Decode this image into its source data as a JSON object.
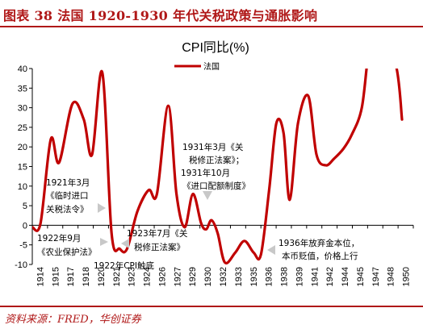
{
  "header": {
    "figure_title": "图表 38   法国 1920-1930 年代关税政策与通胀影响"
  },
  "source": "资料来源：FRED，华创证券",
  "chart_data": {
    "type": "line",
    "title": "CPI同比(%)",
    "xlabel": "",
    "ylabel": "",
    "ylim": [
      -10,
      40
    ],
    "yticks": [
      -10,
      -5,
      0,
      5,
      10,
      15,
      20,
      25,
      30,
      35,
      40
    ],
    "xlim": [
      1914,
      1951
    ],
    "xtick_labels": [
      "1914",
      "1915",
      "1917",
      "1918",
      "1920",
      "1921",
      "1923",
      "1924",
      "1926",
      "1927",
      "1929",
      "1930",
      "1932",
      "1933",
      "1935",
      "1936",
      "1938",
      "1939",
      "1941",
      "1942",
      "1944",
      "1945",
      "1947",
      "1948",
      "1950"
    ],
    "legend": {
      "position": "top-center",
      "entries": [
        "法国"
      ]
    },
    "grid": false,
    "series": [
      {
        "name": "法国",
        "color": "#c00000",
        "x": [
          1914,
          1914.8,
          1915.8,
          1916.6,
          1917.9,
          1919.0,
          1919.8,
          1920.8,
          1921.7,
          1922.5,
          1923.2,
          1924.2,
          1925.3,
          1926.1,
          1927.2,
          1928.0,
          1928.8,
          1929.6,
          1930.4,
          1930.9,
          1931.4,
          1932.0,
          1932.7,
          1933.7,
          1934.6,
          1935.5,
          1936.2,
          1937.0,
          1937.7,
          1938.4,
          1939.0,
          1939.8,
          1940.8,
          1941.6,
          1942.5,
          1943.3,
          1944.2,
          1945.0,
          1946.0,
          1946.7,
          1947.5,
          1949.3,
          1949.9
        ],
        "values": [
          -0.5,
          0.5,
          22,
          16,
          31,
          27,
          18,
          39,
          -2,
          -6,
          -6,
          3.5,
          9,
          8,
          30.5,
          8,
          -0.5,
          8,
          0.5,
          -1,
          1.3,
          -2,
          -9.5,
          -7,
          -4,
          -7,
          -7.5,
          9,
          26,
          23.5,
          6.5,
          26,
          33,
          18,
          15.3,
          17,
          19.5,
          23,
          30,
          45,
          52,
          41,
          27
        ]
      }
    ],
    "annotations": [
      "1921年3月",
      "《临时进口",
      "关税法令》",
      "1922年9月",
      "《农业保护法》",
      "1922年CPI触底",
      "1923年7月《关",
      "税修正法案》",
      "1931年3月《关",
      "税修正法案》；",
      "1931年10月",
      "《进口配额制度》",
      "1936年放弃金本位，",
      "本币贬值，价格上行"
    ]
  }
}
